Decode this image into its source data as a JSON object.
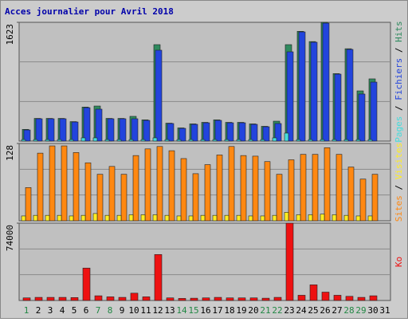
{
  "header": {
    "title": "Acces journalier pour Avril 2018",
    "legend_separator": " / "
  },
  "chart_data": [
    {
      "type": "bar",
      "ylim": [
        0,
        1623
      ],
      "yticks": [
        1623
      ],
      "grid": true,
      "series": [
        {
          "name": "Pages",
          "color": "#44dddd",
          "values": [
            20,
            20,
            20,
            20,
            20,
            44,
            44,
            20,
            20,
            20,
            20,
            44,
            20,
            20,
            20,
            20,
            20,
            20,
            20,
            20,
            20,
            44,
            109,
            20,
            20,
            20,
            20,
            20,
            20,
            20,
            null
          ]
        },
        {
          "name": "Fichiers",
          "color": "#2244dd",
          "values": [
            152,
            305,
            305,
            305,
            261,
            457,
            436,
            305,
            305,
            305,
            283,
            1242,
            240,
            174,
            229,
            250,
            283,
            250,
            250,
            229,
            196,
            240,
            1220,
            1492,
            1351,
            1612,
            915,
            1253,
            643,
            806,
            null
          ]
        },
        {
          "name": "Hits",
          "color": "#2f8a5e",
          "values": [
            160,
            310,
            310,
            310,
            266,
            465,
            479,
            310,
            310,
            338,
            290,
            1318,
            245,
            180,
            235,
            256,
            290,
            256,
            256,
            235,
            202,
            272,
            1318,
            1500,
            1360,
            1623,
            922,
            1262,
            686,
            850,
            null
          ]
        }
      ]
    },
    {
      "type": "bar",
      "ylim": [
        0,
        128
      ],
      "yticks": [
        128
      ],
      "grid": true,
      "series": [
        {
          "name": "Sites",
          "color": "#ff8811",
          "values": [
            55,
            112,
            124,
            124,
            113,
            96,
            77,
            90,
            77,
            108,
            119,
            123,
            116,
            103,
            78,
            93,
            109,
            123,
            108,
            107,
            98,
            77,
            101,
            110,
            110,
            121,
            110,
            89,
            69,
            77,
            null
          ]
        },
        {
          "name": "Visites",
          "color": "#ffee22",
          "values": [
            8,
            9,
            9,
            9,
            8,
            9,
            12,
            9,
            9,
            10,
            10,
            10,
            9,
            8,
            8,
            9,
            9,
            9,
            9,
            8,
            8,
            9,
            14,
            10,
            10,
            11,
            10,
            9,
            8,
            8,
            null
          ]
        }
      ]
    },
    {
      "type": "bar",
      "ylim": [
        0,
        74000
      ],
      "yticks": [
        74000
      ],
      "grid": true,
      "categories": [
        "1",
        "2",
        "3",
        "4",
        "5",
        "6",
        "7",
        "8",
        "9",
        "10",
        "11",
        "12",
        "13",
        "14",
        "15",
        "16",
        "17",
        "18",
        "19",
        "20",
        "21",
        "22",
        "23",
        "24",
        "25",
        "26",
        "27",
        "28",
        "29",
        "30",
        "31"
      ],
      "category_colors": [
        "#228844",
        "#000000",
        "#000000",
        "#000000",
        "#000000",
        "#000000",
        "#228844",
        "#228844",
        "#000000",
        "#000000",
        "#000000",
        "#000000",
        "#000000",
        "#228844",
        "#228844",
        "#000000",
        "#000000",
        "#000000",
        "#000000",
        "#000000",
        "#228844",
        "#228844",
        "#000000",
        "#000000",
        "#000000",
        "#000000",
        "#000000",
        "#228844",
        "#228844",
        "#000000",
        "#000000"
      ],
      "series": [
        {
          "name": "Ko",
          "color": "#ee1111",
          "values": [
            2500,
            3000,
            3000,
            3000,
            2800,
            31000,
            4500,
            3500,
            3000,
            7000,
            3500,
            44000,
            2500,
            2000,
            2200,
            2500,
            3000,
            2500,
            2500,
            2500,
            2200,
            3000,
            74000,
            5000,
            15000,
            8000,
            5000,
            4000,
            3000,
            4500,
            null
          ]
        }
      ]
    }
  ]
}
